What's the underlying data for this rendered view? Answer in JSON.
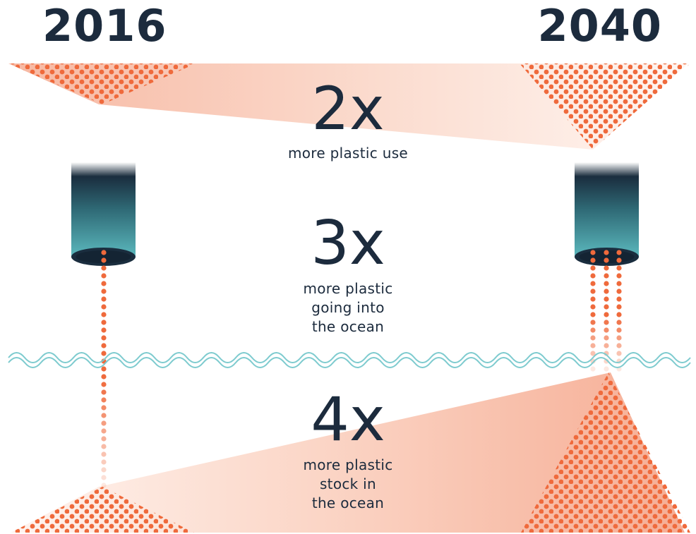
{
  "years": {
    "start": "2016",
    "end": "2040"
  },
  "metrics": [
    {
      "multiplier": "2x",
      "caption": [
        "more plastic use"
      ]
    },
    {
      "multiplier": "3x",
      "caption": [
        "more plastic",
        "going into",
        "the ocean"
      ]
    },
    {
      "multiplier": "4x",
      "caption": [
        "more plastic",
        "stock in",
        "the ocean"
      ]
    }
  ],
  "colors": {
    "text": "#1c2b3d",
    "dots": "#ef6a3c",
    "band": "#f9c6b3",
    "pipe_top": "#1a2d3e",
    "pipe_bottom": "#5bb8bd",
    "wave": "#7ecbcf"
  }
}
